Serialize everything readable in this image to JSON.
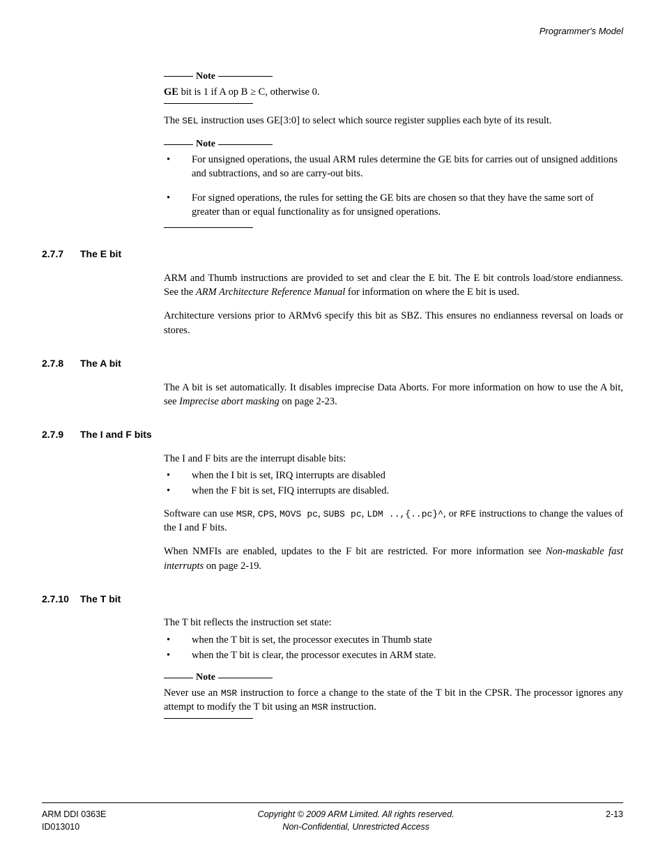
{
  "header": {
    "text": "Programmer's Model"
  },
  "note1": {
    "label": "Note",
    "body_html": "<span class=\"bold\">GE</span> bit is 1 if A op B ≥ C, otherwise 0."
  },
  "para_sel": "The <span class=\"code\">SEL</span> instruction uses GE[3:0] to select which source register supplies each byte of its result.",
  "note2": {
    "label": "Note",
    "bullets": [
      "For unsigned operations, the usual ARM rules determine the GE bits for carries out of unsigned additions and subtractions, and so are carry-out bits.",
      "For signed operations, the rules for setting the GE bits are chosen so that they have the same sort of greater than or equal functionality as for unsigned operations."
    ]
  },
  "s277": {
    "num": "2.7.7",
    "title": "The E bit",
    "para1": "ARM and Thumb instructions are provided to set and clear the E bit. The E bit controls load/store endianness. See the <span class=\"italic\">ARM Architecture Reference Manual</span> for information on where the E bit is used.",
    "para2": "Architecture versions prior to ARMv6 specify this bit as SBZ. This ensures no endianness reversal on loads or stores."
  },
  "s278": {
    "num": "2.7.8",
    "title": "The A bit",
    "para1": "The A bit is set automatically. It disables imprecise Data Aborts. For more information on how to use the A bit, see <span class=\"italic\">Imprecise abort masking</span> on page 2-23."
  },
  "s279": {
    "num": "2.7.9",
    "title": "The I and F bits",
    "intro": "The I and F bits are the interrupt disable bits:",
    "bullets": [
      "when the I bit is set, IRQ interrupts are disabled",
      "when the F bit is set, FIQ interrupts are disabled."
    ],
    "para2": "Software can use <span class=\"code\">MSR</span>, <span class=\"code\">CPS</span>, <span class=\"code\">MOVS pc</span>, <span class=\"code\">SUBS pc</span>, <span class=\"code\">LDM ..,{..pc}^</span>, or <span class=\"code\">RFE</span> instructions to change the values of the I and F bits.",
    "para3": "When NMFIs are enabled, updates to the F bit are restricted. For more information see <span class=\"italic\">Non-maskable fast interrupts</span> on page 2-19."
  },
  "s2710": {
    "num": "2.7.10",
    "title": "The T bit",
    "intro": "The T bit reflects the instruction set state:",
    "bullets": [
      "when the T bit is set, the processor executes in Thumb state",
      "when the T bit is clear, the processor executes in ARM state."
    ],
    "note_label": "Note",
    "note_body": "Never use an <span class=\"code\">MSR</span> instruction to force a change to the state of the T bit in the CPSR. The processor ignores any attempt to modify the T bit using an <span class=\"code\">MSR</span> instruction."
  },
  "footer": {
    "left1": "ARM DDI 0363E",
    "left2": "ID013010",
    "center1": "Copyright © 2009 ARM Limited. All rights reserved.",
    "center2": "Non-Confidential, Unrestricted Access",
    "right": "2-13"
  }
}
